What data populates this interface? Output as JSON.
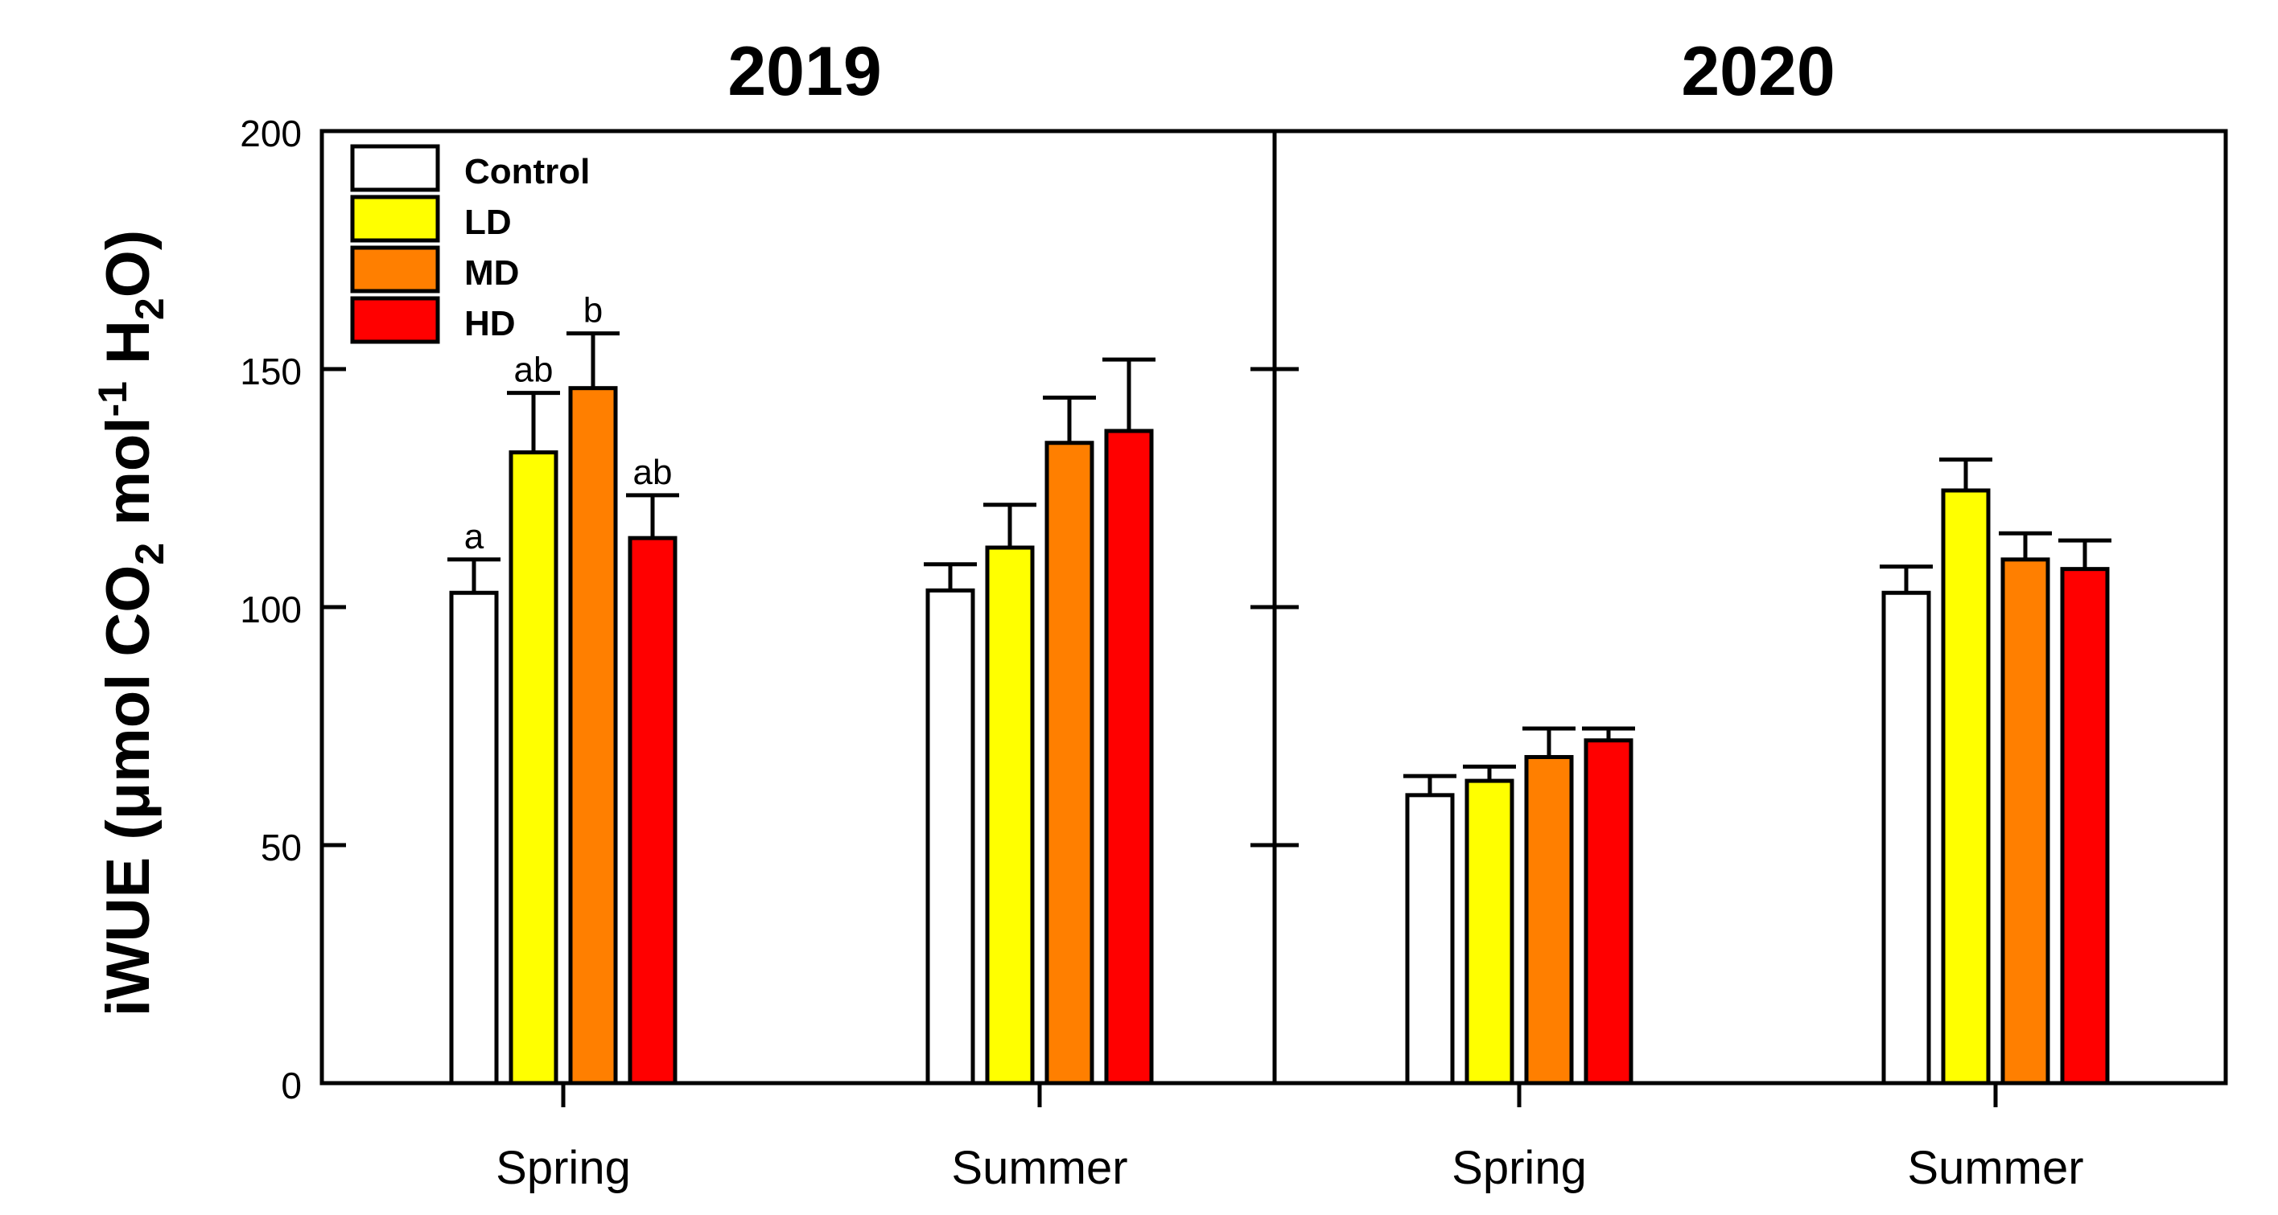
{
  "chart_data": {
    "type": "bar",
    "ylabel": {
      "main": "iWUE (",
      "mu": "μ",
      "mid": "mol CO",
      "sub1": "2",
      "mol": " mol",
      "sup": "-1",
      "h": " H",
      "sub2": "2",
      "end": "O)"
    },
    "ylim": [
      0,
      200
    ],
    "yticks": [
      "0",
      "50",
      "100",
      "150",
      "200"
    ],
    "series": [
      {
        "name": "Control",
        "color": "#FFFFFF"
      },
      {
        "name": "LD",
        "color": "#FFFF00"
      },
      {
        "name": "MD",
        "color": "#FF7F00"
      },
      {
        "name": "HD",
        "color": "#FF0000"
      }
    ],
    "panels": [
      {
        "title": "2019",
        "groups": [
          {
            "category": "Spring",
            "values": [
              103,
              132.5,
              146,
              114.5
            ],
            "errors": [
              7,
              12.5,
              11.5,
              9
            ],
            "labels": [
              "a",
              "ab",
              "b",
              "ab"
            ]
          },
          {
            "category": "Summer",
            "values": [
              103.5,
              112.5,
              134.5,
              137
            ],
            "errors": [
              5.5,
              9,
              9.5,
              15
            ],
            "labels": [
              "",
              "",
              "",
              ""
            ]
          }
        ]
      },
      {
        "title": "2020",
        "groups": [
          {
            "category": "Spring",
            "values": [
              60.5,
              63.5,
              68.5,
              72
            ],
            "errors": [
              4,
              3,
              6,
              2.5
            ],
            "labels": [
              "",
              "",
              "",
              ""
            ]
          },
          {
            "category": "Summer",
            "values": [
              103,
              124.5,
              110,
              108
            ],
            "errors": [
              5.5,
              6.5,
              5.5,
              6
            ],
            "labels": [
              "",
              "",
              "",
              ""
            ]
          }
        ]
      }
    ]
  }
}
